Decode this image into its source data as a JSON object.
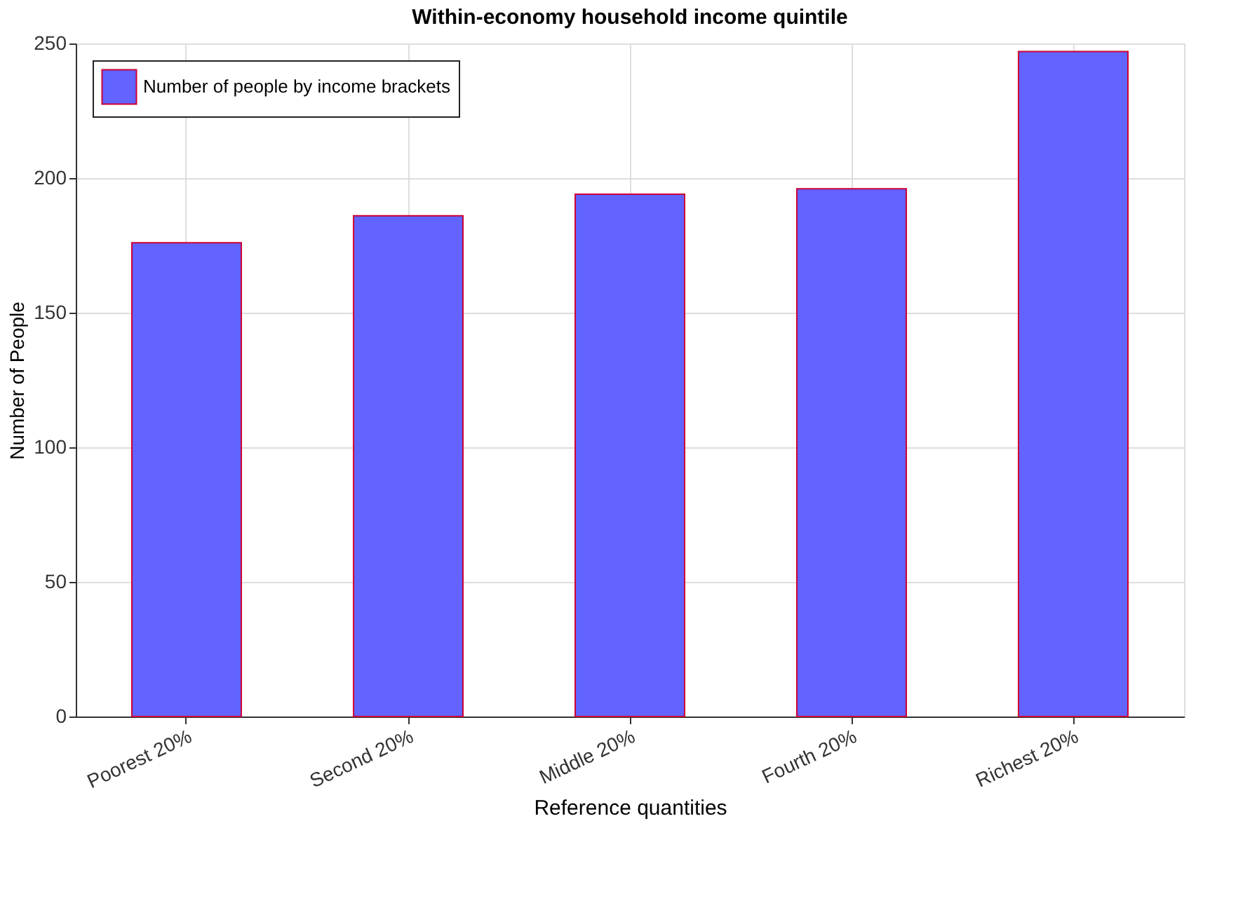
{
  "chart_data": {
    "type": "bar",
    "title": "Within-economy household income quintile",
    "xlabel": "Reference quantities",
    "ylabel": "Number of People",
    "categories": [
      "Poorest 20%",
      "Second 20%",
      "Middle 20%",
      "Fourth 20%",
      "Richest 20%"
    ],
    "series": [
      {
        "name": "Number of people by income brackets",
        "color": "#6363ff",
        "values": [
          176,
          186,
          194,
          196,
          247
        ]
      }
    ],
    "ylim": [
      0,
      250
    ],
    "yticks": [
      0,
      50,
      100,
      150,
      200,
      250
    ],
    "grid": true,
    "legend": "top left"
  }
}
